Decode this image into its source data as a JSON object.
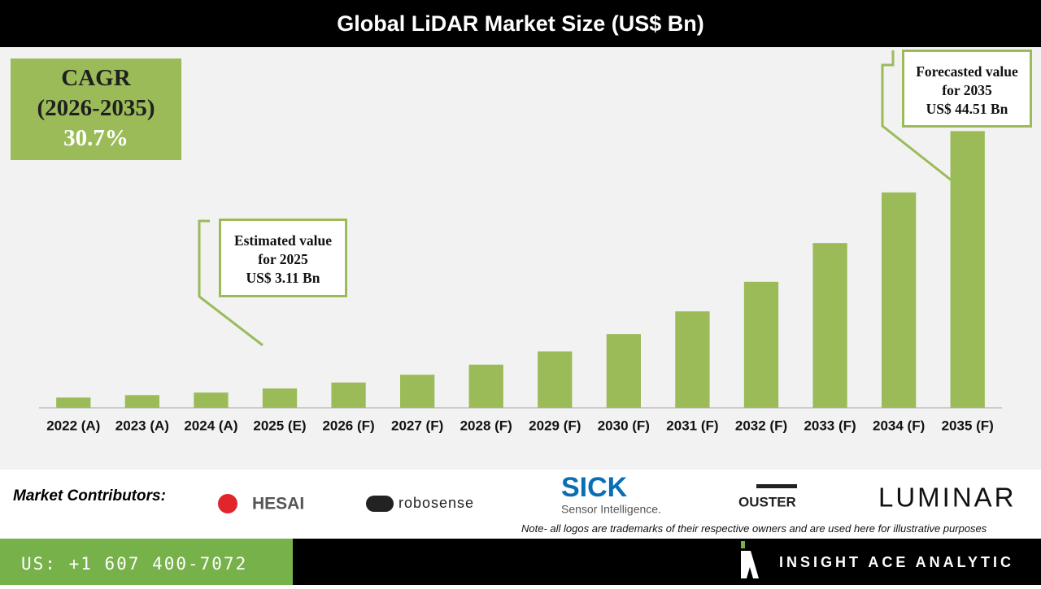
{
  "chart_data": {
    "type": "bar",
    "title": "Global LiDAR Market Size (US$ Bn)",
    "categories": [
      "2022 (A)",
      "2023 (A)",
      "2024 (A)",
      "2025 (E)",
      "2026 (F)",
      "2027 (F)",
      "2028 (F)",
      "2029 (F)",
      "2030 (F)",
      "2031 (F)",
      "2032 (F)",
      "2033 (F)",
      "2034 (F)",
      "2035 (F)"
    ],
    "values": [
      1.65,
      2.05,
      2.45,
      3.11,
      4.07,
      5.32,
      6.95,
      9.08,
      11.87,
      15.52,
      20.28,
      26.51,
      34.65,
      44.51
    ],
    "value_labels": [
      null,
      null,
      null,
      "US$ 3.11 Bn",
      null,
      null,
      null,
      null,
      null,
      null,
      null,
      null,
      null,
      "US$ 44.51 Bn"
    ],
    "annotations": [
      "Estimated value for 2025",
      "Forecasted value for 2035"
    ],
    "color": "#9bbb59",
    "ylim": [
      0,
      46
    ]
  },
  "cagr": {
    "label": "CAGR",
    "period": "(2026-2035)",
    "value": "30.7%"
  },
  "contributors": {
    "label": "Market Contributors:",
    "logos": [
      "HESAI",
      "robosense",
      "SICK",
      "Sensor Intelligence.",
      "OUSTER",
      "LUMINAR"
    ],
    "note": "Note- all logos are trademarks of their respective owners and are used here for illustrative purposes"
  },
  "footer": {
    "phone": "US: +1 607 400-7072",
    "company": "INSIGHT ACE ANALYTIC"
  }
}
